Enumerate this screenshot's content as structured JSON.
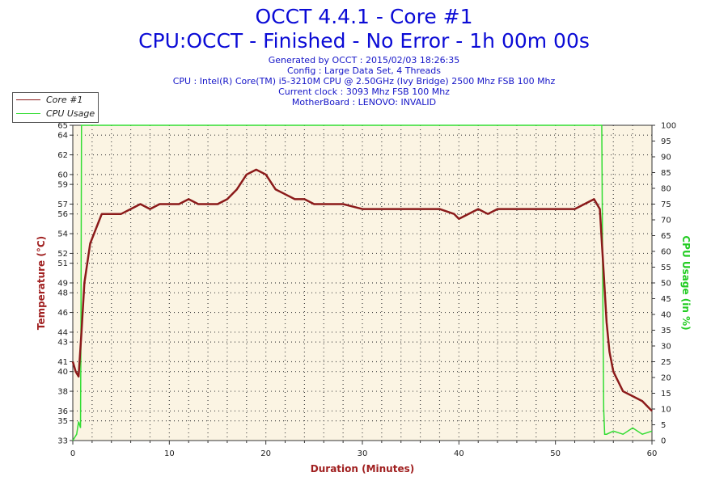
{
  "header": {
    "title": "OCCT 4.4.1 - Core #1",
    "subtitle": "CPU:OCCT - Finished - No Error - 1h 00m 00s",
    "info": [
      "Generated by OCCT : 2015/02/03 18:26:35",
      "Config : Large Data Set, 4 Threads",
      "CPU : Intel(R) Core(TM) i5-3210M CPU @ 2.50GHz (Ivy Bridge) 2500 Mhz FSB 100 Mhz",
      "Current clock : 3093 Mhz FSB 100 Mhz",
      "MotherBoard : LENOVO: INVALID"
    ]
  },
  "legend": {
    "items": [
      {
        "label": "Core #1",
        "color": "#8b1a1a"
      },
      {
        "label": "CPU Usage",
        "color": "#33dd33"
      }
    ]
  },
  "colors": {
    "plot_bg": "#fbf4e3",
    "grid": "#444444",
    "temp": "#8b1a1a",
    "usage": "#33dd33",
    "temp_axis_label": "#a01f1f",
    "usage_axis_label": "#22cc22",
    "title": "#0b0bd6"
  },
  "chart_data": {
    "type": "line",
    "title": "OCCT 4.4.1 - Core #1",
    "subtitle": "CPU:OCCT - Finished - No Error - 1h 00m 00s",
    "xlabel": "Duration (Minutes)",
    "ylabel": "Temperature (°C)",
    "y2label": "CPU Usage (in %)",
    "xlim": [
      0,
      60
    ],
    "ylim": [
      33,
      65
    ],
    "y2lim": [
      0,
      100
    ],
    "x_ticks": [
      0,
      10,
      20,
      30,
      40,
      50,
      60
    ],
    "y_ticks": [
      33,
      35,
      36,
      38,
      40,
      41,
      43,
      44,
      46,
      48,
      49,
      51,
      52,
      54,
      56,
      57,
      59,
      60,
      62,
      64,
      65
    ],
    "y2_ticks": [
      0,
      5,
      10,
      15,
      20,
      25,
      30,
      35,
      40,
      45,
      50,
      55,
      60,
      65,
      70,
      75,
      80,
      85,
      90,
      95,
      100
    ],
    "grid": true,
    "legend_position": "top-left",
    "series": [
      {
        "name": "Core #1",
        "axis": "left",
        "x": [
          0,
          0.3,
          0.6,
          0.9,
          1.2,
          1.5,
          1.8,
          2.2,
          2.6,
          3,
          4,
          5,
          6,
          7,
          8,
          9,
          10,
          11,
          12,
          13,
          14,
          15,
          16,
          17,
          18,
          19,
          20,
          21,
          22,
          23,
          24,
          25,
          26,
          28,
          30,
          32,
          34,
          36,
          38,
          39.5,
          40,
          42,
          43,
          44,
          46,
          48,
          50,
          52,
          53,
          54,
          54.6,
          55,
          55.3,
          55.6,
          56,
          56.5,
          57,
          58,
          59,
          59.5,
          60
        ],
        "values": [
          41,
          40,
          39.5,
          44,
          49,
          51,
          53,
          54,
          55,
          56,
          56,
          56,
          56.5,
          57,
          56.5,
          57,
          57,
          57,
          57.5,
          57,
          57,
          57,
          57.5,
          58.5,
          60,
          60.5,
          60,
          58.5,
          58,
          57.5,
          57.5,
          57,
          57,
          57,
          56.5,
          56.5,
          56.5,
          56.5,
          56.5,
          56,
          55.5,
          56.5,
          56,
          56.5,
          56.5,
          56.5,
          56.5,
          56.5,
          57,
          57.5,
          56.5,
          50,
          45,
          42,
          40,
          39,
          38,
          37.5,
          37,
          36.5,
          36
        ]
      },
      {
        "name": "CPU Usage",
        "axis": "right",
        "x": [
          0,
          0.4,
          0.6,
          0.8,
          0.85,
          0.9,
          1.0,
          54.8,
          54.9,
          55.0,
          55.1,
          55.3,
          56,
          57,
          58,
          59,
          60
        ],
        "values": [
          0,
          2,
          6,
          4,
          40,
          100,
          100,
          100,
          50,
          10,
          2,
          2,
          3,
          2,
          4,
          2,
          3
        ]
      }
    ]
  }
}
